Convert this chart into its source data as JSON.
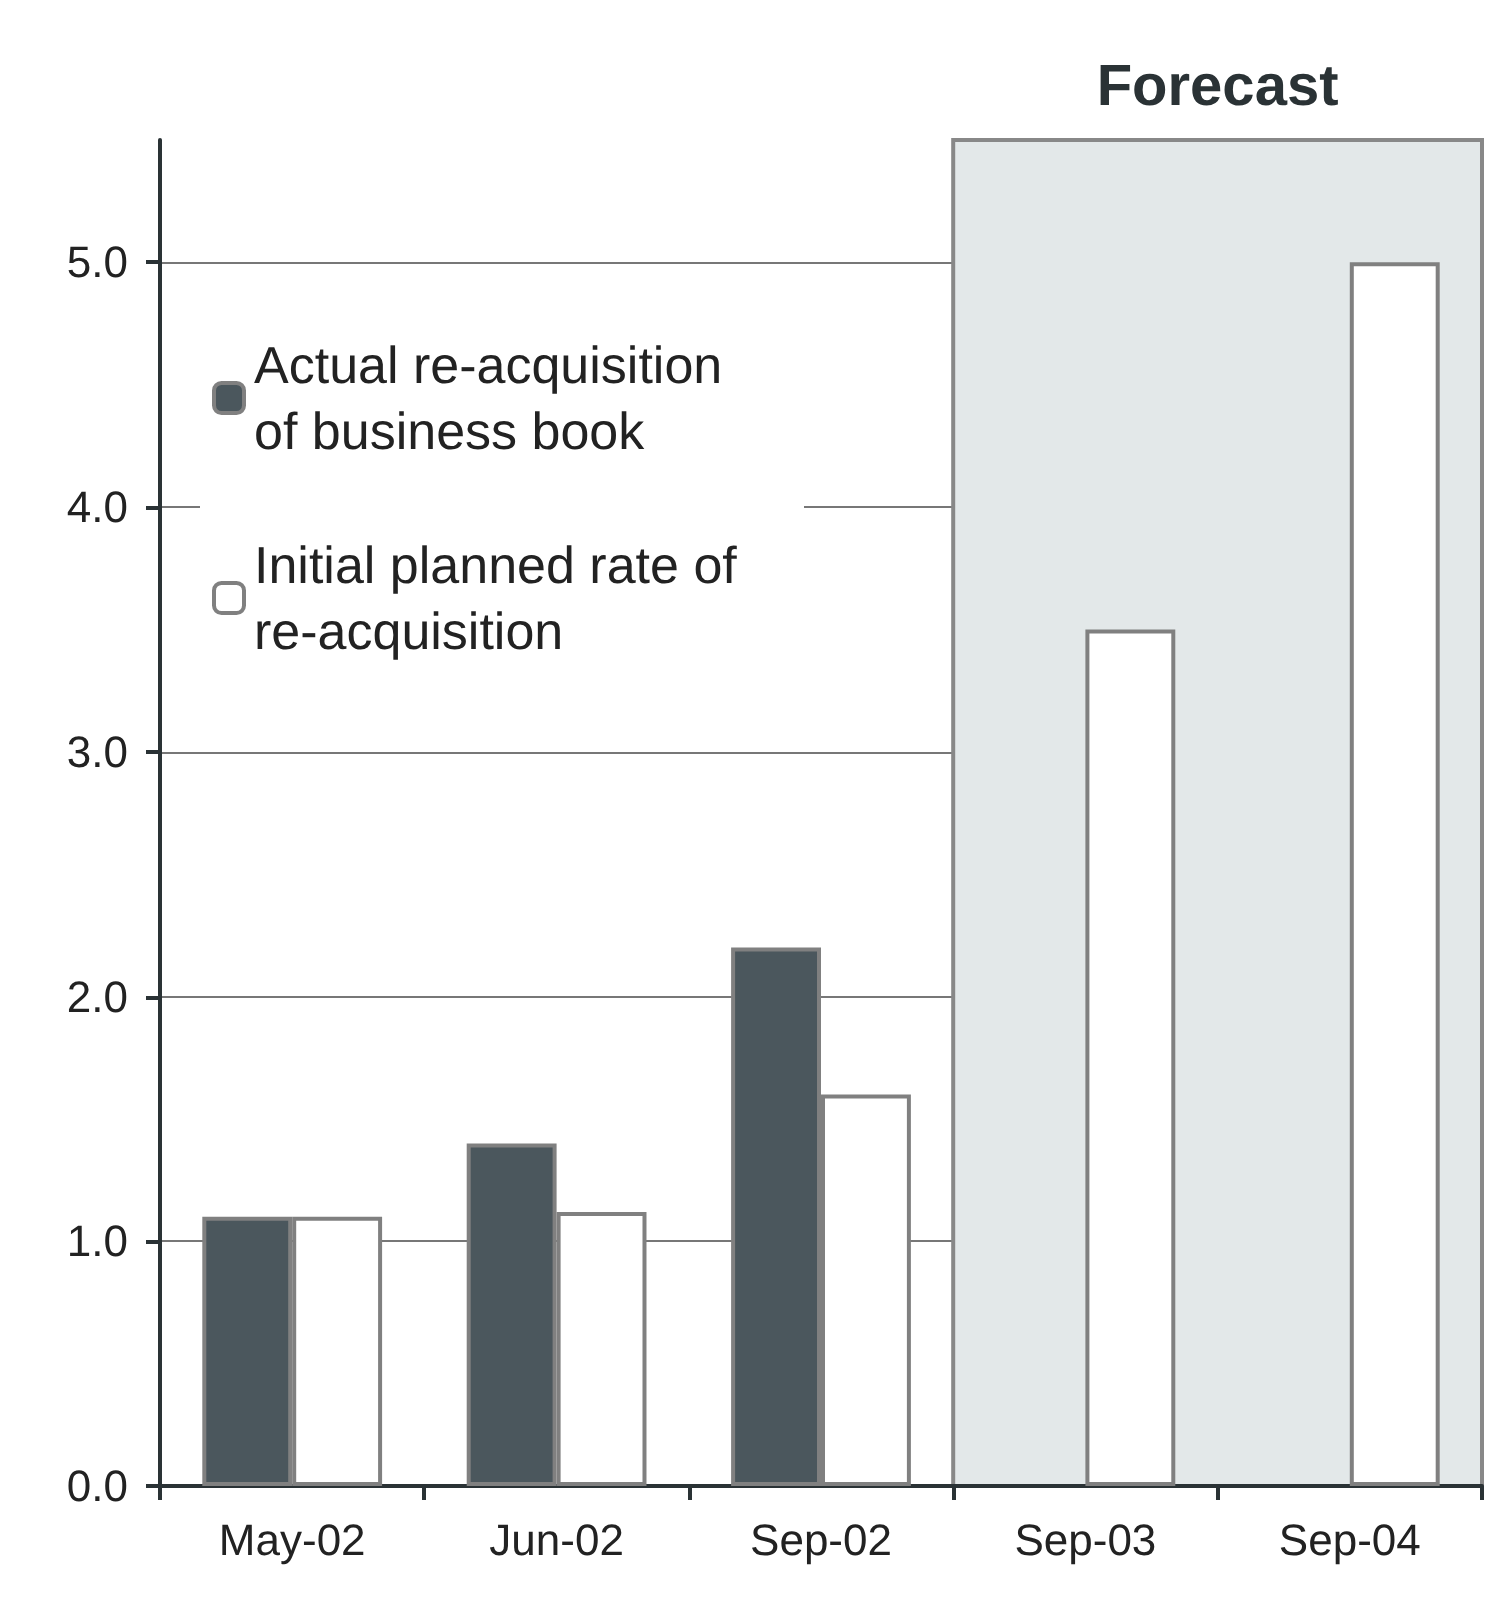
{
  "chart_data": {
    "type": "bar",
    "categories": [
      "May-02",
      "Jun-02",
      "Sep-02",
      "Sep-03",
      "Sep-04"
    ],
    "series": [
      {
        "name": "Actual re-acquisition of business book",
        "color": "#4b575d",
        "values": [
          1.1,
          1.4,
          2.2,
          null,
          null
        ]
      },
      {
        "name": "Initial planned rate of re-acquisition",
        "color": "#ffffff",
        "values": [
          1.1,
          1.12,
          1.6,
          3.5,
          5.0
        ]
      }
    ],
    "ylim": [
      0,
      5.5
    ],
    "yticks": [
      {
        "value": 0,
        "label": "0.0"
      },
      {
        "value": 1,
        "label": "1.0"
      },
      {
        "value": 2,
        "label": "2.0"
      },
      {
        "value": 3,
        "label": "3.0"
      },
      {
        "value": 4,
        "label": "4.0"
      },
      {
        "value": 5,
        "label": "5.0"
      }
    ],
    "bands": [
      {
        "axis": "x",
        "from": "Sep-03",
        "to": "Sep-04",
        "label": "Forecast",
        "color": "#e3e8e9"
      }
    ],
    "grid": "y",
    "legend": "top left"
  }
}
